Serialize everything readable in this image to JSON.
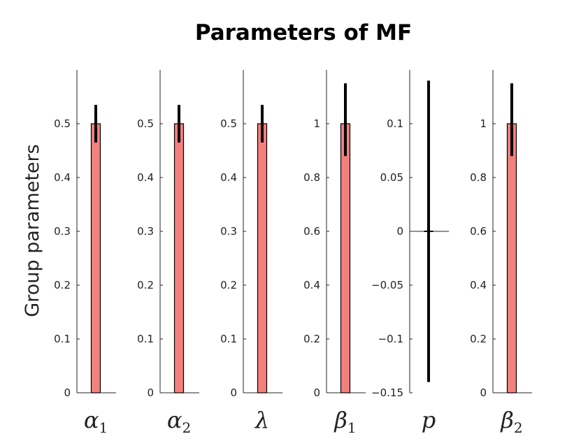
{
  "chart_data": {
    "type": "bar",
    "title": "Parameters of MF",
    "ylabel": "Group parameters",
    "bar_color": "#f4807e",
    "error_color": "#000000",
    "panels": [
      {
        "label_main": "α",
        "label_sub": "1",
        "value": 0.5,
        "err_low": 0.465,
        "err_high": 0.535,
        "ylim": [
          0,
          0.6
        ],
        "ticks": [
          0,
          0.1,
          0.2,
          0.3,
          0.4,
          0.5
        ],
        "tick_labels": [
          "0",
          "0.1",
          "0.2",
          "0.3",
          "0.4",
          "0.5"
        ]
      },
      {
        "label_main": "α",
        "label_sub": "2",
        "value": 0.5,
        "err_low": 0.465,
        "err_high": 0.535,
        "ylim": [
          0,
          0.6
        ],
        "ticks": [
          0,
          0.1,
          0.2,
          0.3,
          0.4,
          0.5
        ],
        "tick_labels": [
          "0",
          "0.1",
          "0.2",
          "0.3",
          "0.4",
          "0.5"
        ]
      },
      {
        "label_main": "λ",
        "label_sub": "",
        "value": 0.5,
        "err_low": 0.465,
        "err_high": 0.535,
        "ylim": [
          0,
          0.6
        ],
        "ticks": [
          0,
          0.1,
          0.2,
          0.3,
          0.4,
          0.5
        ],
        "tick_labels": [
          "0",
          "0.1",
          "0.2",
          "0.3",
          "0.4",
          "0.5"
        ]
      },
      {
        "label_main": "β",
        "label_sub": "1",
        "value": 1,
        "err_low": 0.88,
        "err_high": 1.15,
        "ylim": [
          0,
          1.2
        ],
        "ticks": [
          0,
          0.2,
          0.4,
          0.6,
          0.8,
          1
        ],
        "tick_labels": [
          "0",
          "0.2",
          "0.4",
          "0.6",
          "0.8",
          "1"
        ]
      },
      {
        "label_main": "p",
        "label_sub": "",
        "value": 0,
        "err_low": -0.14,
        "err_high": 0.14,
        "ylim": [
          -0.15,
          0.15
        ],
        "ticks": [
          -0.15,
          -0.1,
          -0.05,
          0,
          0.05,
          0.1
        ],
        "tick_labels": [
          "−0.15",
          "−0.1",
          "−0.05",
          "0",
          "0.05",
          "0.1"
        ]
      },
      {
        "label_main": "β",
        "label_sub": "2",
        "value": 1,
        "err_low": 0.88,
        "err_high": 1.15,
        "ylim": [
          0,
          1.2
        ],
        "ticks": [
          0,
          0.2,
          0.4,
          0.6,
          0.8,
          1
        ],
        "tick_labels": [
          "0",
          "0.2",
          "0.4",
          "0.6",
          "0.8",
          "1"
        ]
      }
    ]
  }
}
